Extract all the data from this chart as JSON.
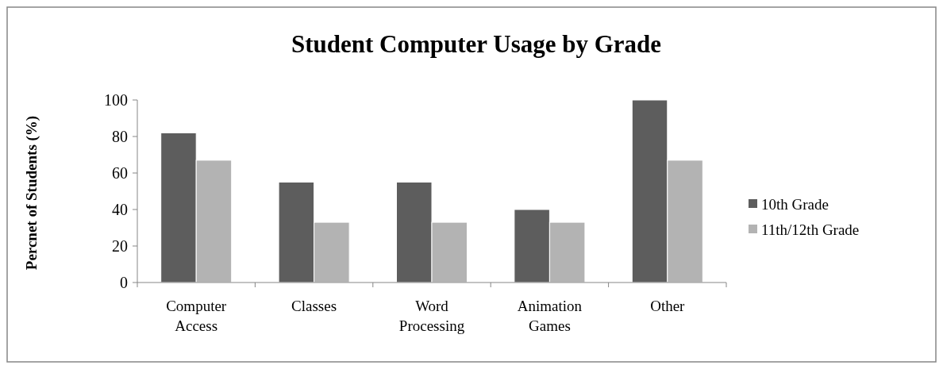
{
  "chart_data": {
    "type": "bar",
    "title": "Student Computer Usage by Grade",
    "ylabel": "Percnet of Students (%)",
    "categories": [
      "Computer Access",
      "Classes",
      "Word Processing",
      "Animation Games",
      "Other"
    ],
    "series": [
      {
        "name": "10th Grade",
        "color": "#5d5d5d",
        "values": [
          82,
          55,
          55,
          40,
          100
        ]
      },
      {
        "name": "11th/12th Grade",
        "color": "#b3b3b3",
        "values": [
          67,
          33,
          33,
          33,
          67
        ]
      }
    ],
    "ylim": [
      0,
      100
    ],
    "yticks": [
      0,
      20,
      40,
      60,
      80,
      100
    ],
    "grid": false,
    "legend": "right"
  }
}
